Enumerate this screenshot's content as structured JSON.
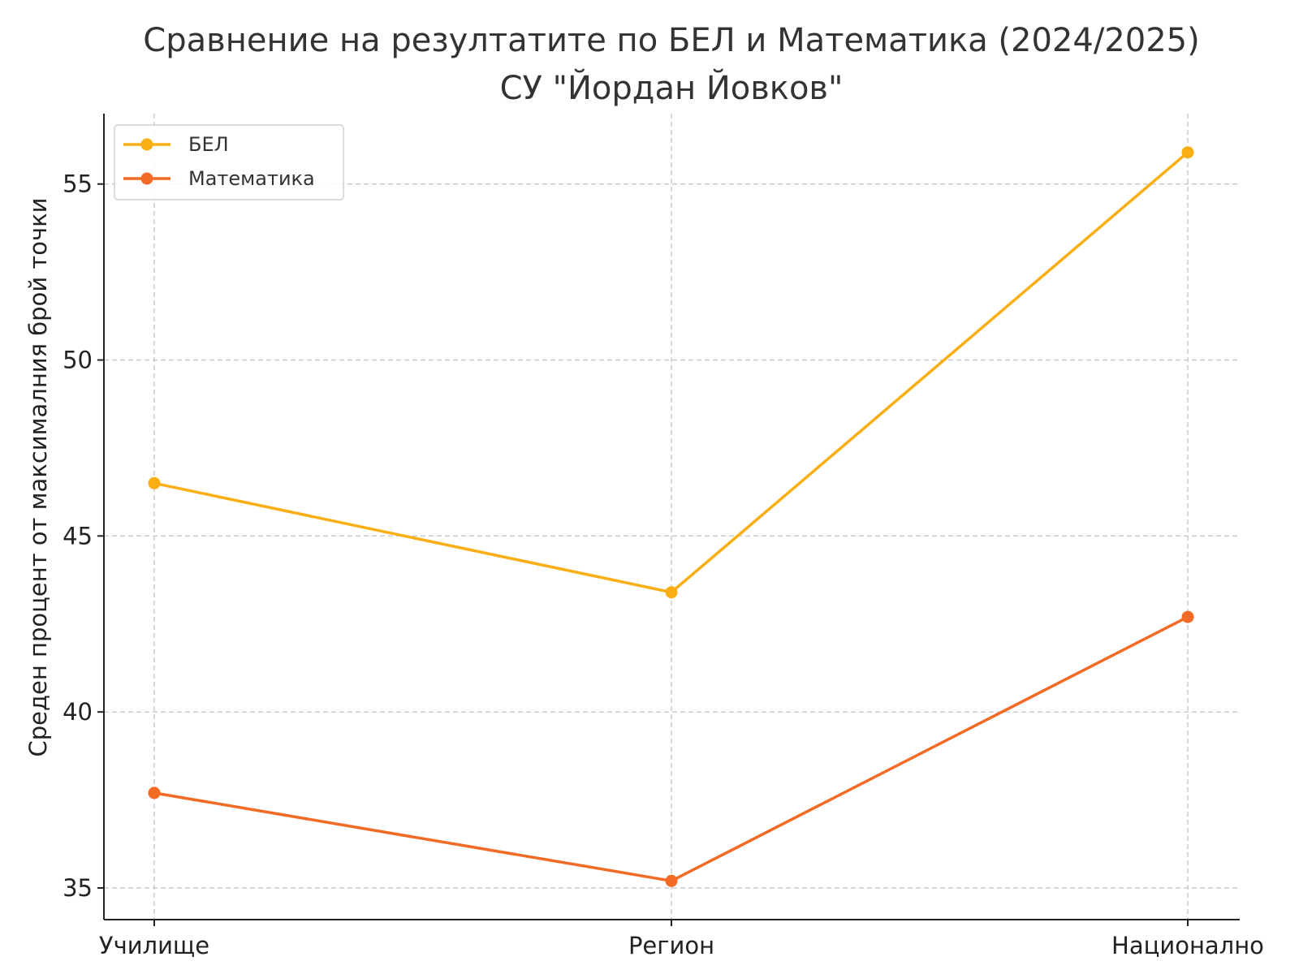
{
  "chart_data": {
    "type": "line",
    "title": "Сравнение на резултатите по БЕЛ и Математика (2024/2025)",
    "subtitle": "СУ \"Йордан Йовков\"",
    "xlabel": "",
    "ylabel": "Среден процент от максималния брой точки",
    "categories": [
      "Училище",
      "Регион",
      "Национално"
    ],
    "ylim": [
      34.1,
      57.0
    ],
    "yticks": [
      35,
      40,
      45,
      50,
      55
    ],
    "grid": true,
    "legend_position": "top-left",
    "series": [
      {
        "name": "БЕЛ",
        "color": "#F9AE13",
        "marker": "circle",
        "values": [
          46.5,
          43.4,
          55.9
        ]
      },
      {
        "name": "Математика",
        "color": "#F26A24",
        "marker": "circle",
        "values": [
          37.7,
          35.2,
          42.7
        ]
      }
    ]
  }
}
